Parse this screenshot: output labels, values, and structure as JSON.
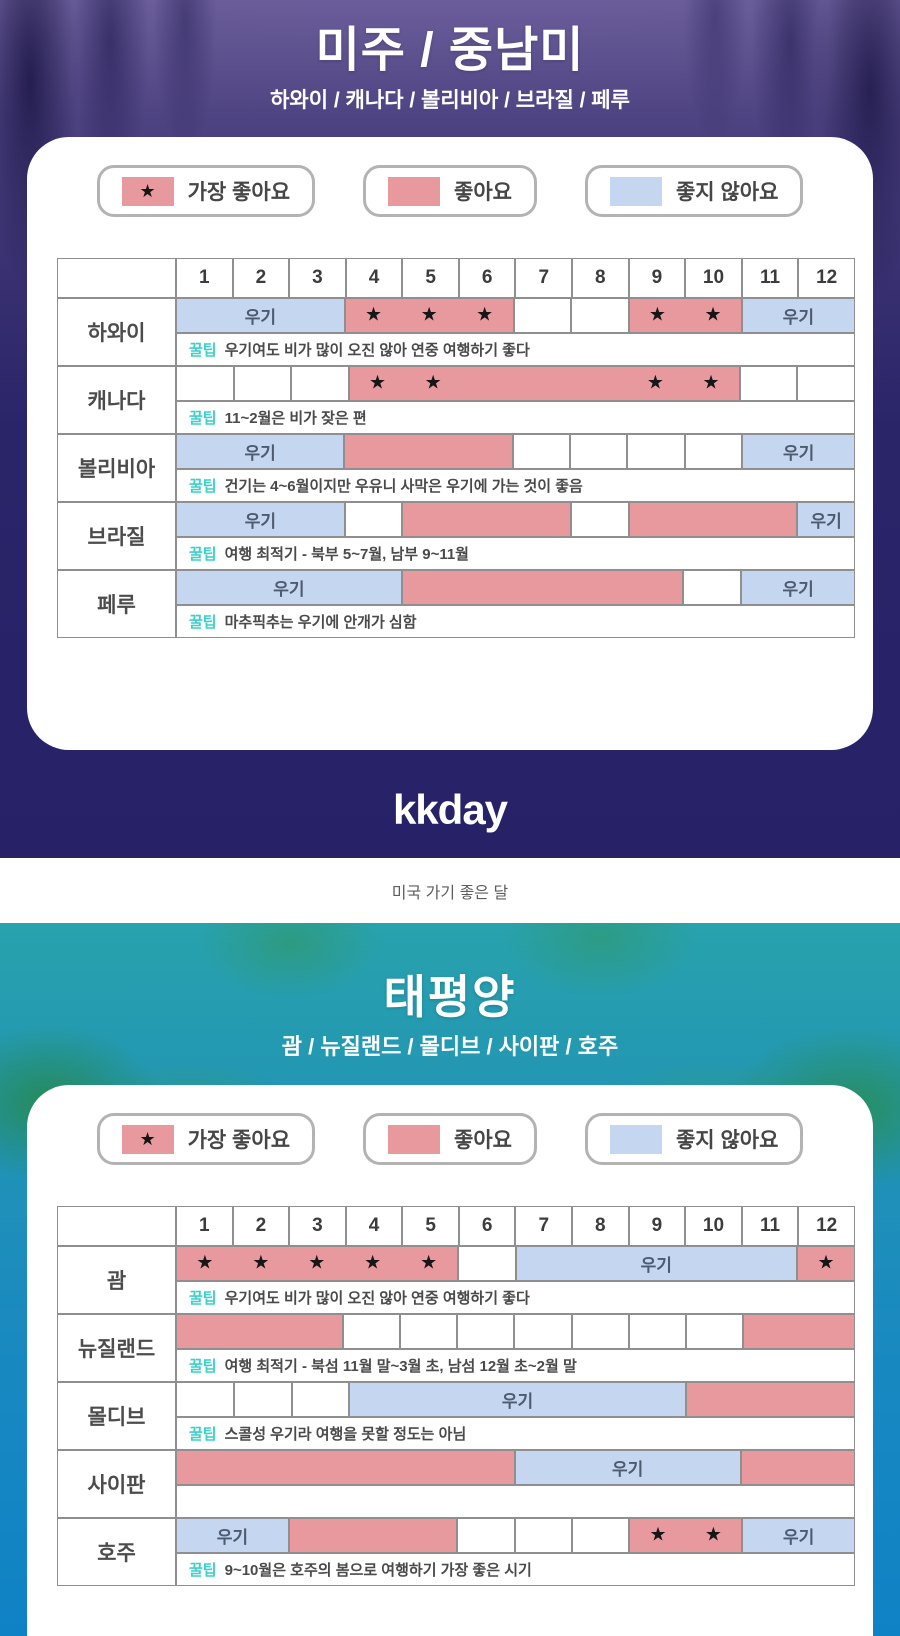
{
  "page": {
    "caption": "미국 가기 좋은 달",
    "brand": "kkday",
    "tip_label": "꿀팁",
    "rainy_label": "우기"
  },
  "legend": {
    "best": "가장 좋아요",
    "good": "좋아요",
    "bad": "좋지 않아요"
  },
  "colors": {
    "best_good_fill": "#e8999d",
    "not_good_fill": "#c5d6f1",
    "star": "#161616",
    "tip_accent": "#3ed0c8",
    "grid_line": "#8f8f8f",
    "americas_bg": "#272268",
    "pacific_teal": "#2397b3",
    "pacific_ocean": "#0f82c6"
  },
  "chart_data": {
    "type": "heatmap",
    "x_labels": [
      "1",
      "2",
      "3",
      "4",
      "5",
      "6",
      "7",
      "8",
      "9",
      "10",
      "11",
      "12"
    ],
    "value_domain": [
      "best",
      "good",
      "bad",
      "none"
    ],
    "value_meaning": {
      "best": "가장 좋아요 (pink + star)",
      "good": "좋아요 (pink)",
      "bad": "좋지 않아요 / 우기 (light blue)",
      "none": "no rating (white)"
    },
    "sections": [
      {
        "title": "미주 / 중남미",
        "subtitle": "하와이 / 캐나다 / 볼리비아 / 브라질 / 페루",
        "rows": [
          {
            "name": "하와이",
            "values": [
              "bad",
              "bad",
              "bad",
              "best",
              "best",
              "best",
              "none",
              "none",
              "best",
              "best",
              "bad",
              "bad"
            ],
            "tip": "우기여도 비가 많이 오진 않아 연중 여행하기 좋다"
          },
          {
            "name": "캐나다",
            "values": [
              "none",
              "none",
              "none",
              "best",
              "best",
              "good",
              "good",
              "good",
              "best",
              "best",
              "none",
              "none"
            ],
            "tip": "11~2월은 비가 잦은 편"
          },
          {
            "name": "볼리비아",
            "values": [
              "bad",
              "bad",
              "bad",
              "good",
              "good",
              "good",
              "none",
              "none",
              "none",
              "none",
              "bad",
              "bad"
            ],
            "tip": "건기는 4~6월이지만 우유니 사막은 우기에 가는 것이 좋음"
          },
          {
            "name": "브라질",
            "values": [
              "bad",
              "bad",
              "bad",
              "none",
              "good",
              "good",
              "good",
              "none",
              "good",
              "good",
              "good",
              "bad"
            ],
            "tip": "여행 최적기 - 북부 5~7월, 남부 9~11월"
          },
          {
            "name": "페루",
            "values": [
              "bad",
              "bad",
              "bad",
              "bad",
              "good",
              "good",
              "good",
              "good",
              "good",
              "none",
              "bad",
              "bad"
            ],
            "tip": "마추픽추는 우기에 안개가 심함"
          }
        ]
      },
      {
        "title": "태평양",
        "subtitle": "괌 / 뉴질랜드 / 몰디브 / 사이판 / 호주",
        "rows": [
          {
            "name": "괌",
            "values": [
              "best",
              "best",
              "best",
              "best",
              "best",
              "none",
              "bad",
              "bad",
              "bad",
              "bad",
              "bad",
              "best"
            ],
            "tip": "우기여도 비가 많이 오진 않아 연중 여행하기 좋다"
          },
          {
            "name": "뉴질랜드",
            "values": [
              "good",
              "good",
              "good",
              "none",
              "none",
              "none",
              "none",
              "none",
              "none",
              "none",
              "good",
              "good"
            ],
            "tip": "여행 최적기 - 북섬 11월 말~3월 초, 남섬 12월 초~2월 말"
          },
          {
            "name": "몰디브",
            "values": [
              "none",
              "none",
              "none",
              "bad",
              "bad",
              "bad",
              "bad",
              "bad",
              "bad",
              "good",
              "good",
              "good"
            ],
            "tip": "스콜성 우기라 여행을 못할 정도는 아님"
          },
          {
            "name": "사이판",
            "values": [
              "good",
              "good",
              "good",
              "good",
              "good",
              "good",
              "bad",
              "bad",
              "bad",
              "bad",
              "good",
              "good"
            ],
            "tip": ""
          },
          {
            "name": "호주",
            "values": [
              "bad",
              "bad",
              "good",
              "good",
              "good",
              "none",
              "none",
              "none",
              "best",
              "best",
              "bad",
              "bad"
            ],
            "tip": "9~10월은 호주의 봄으로 여행하기 가장 좋은 시기"
          }
        ]
      }
    ]
  }
}
